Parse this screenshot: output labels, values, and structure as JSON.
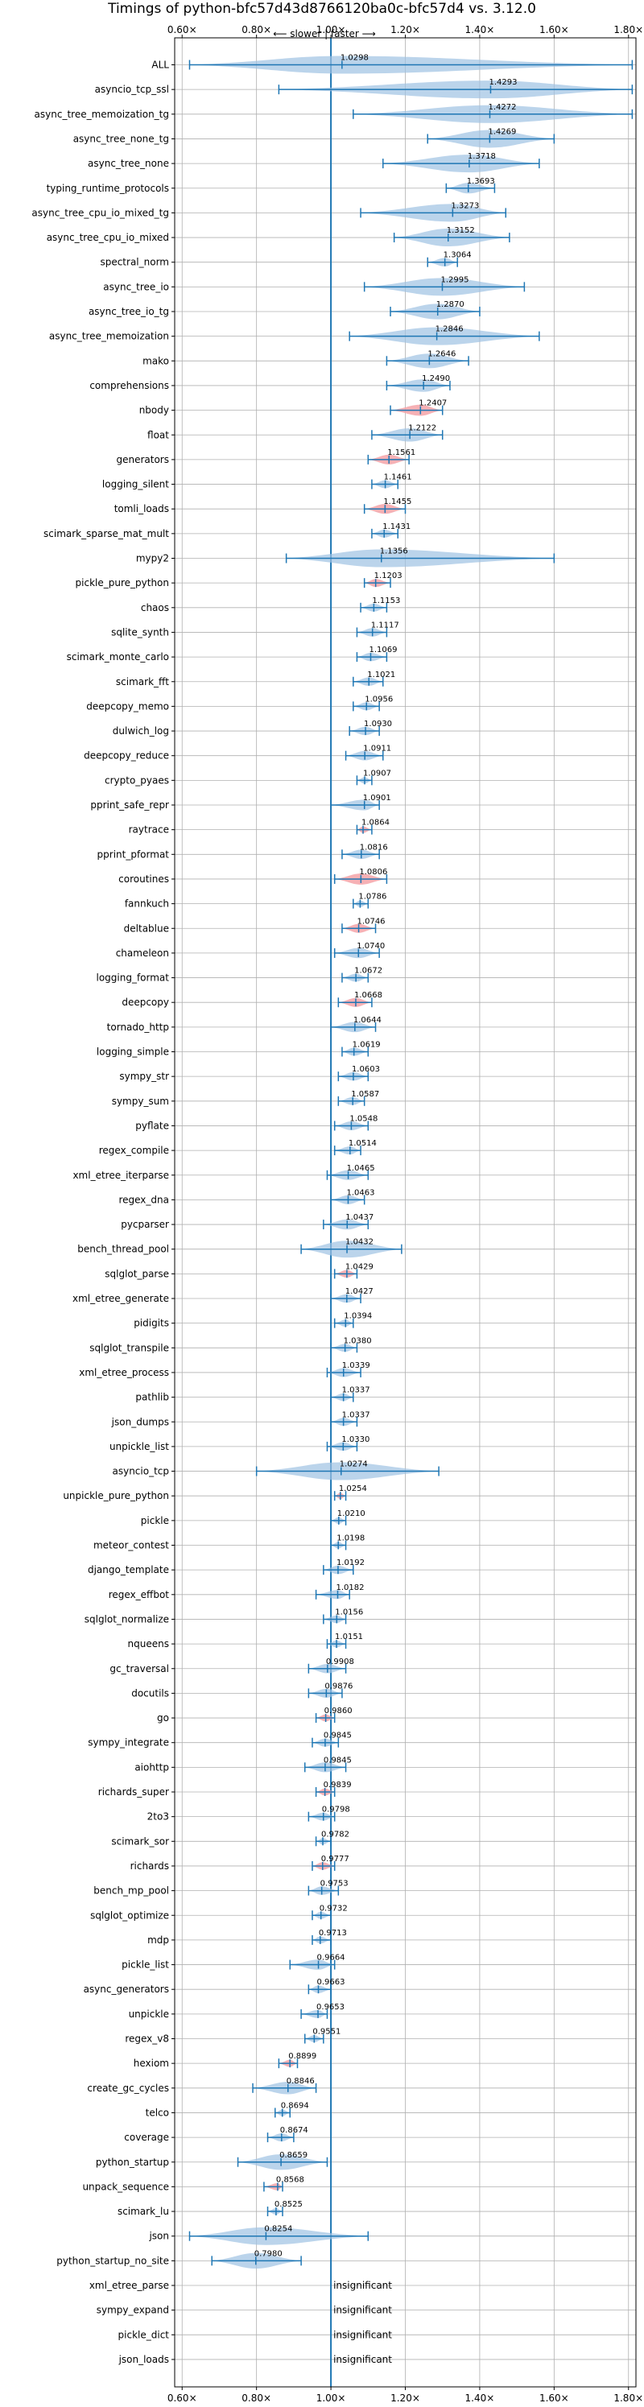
{
  "chart_data": {
    "type": "violin",
    "title": "Timings of python-bfc57d43d8766120ba0c-bfc57d4 vs. 3.12.0",
    "direction_label": "⟵ slower | faster ⟶",
    "xlim": [
      0.58,
      1.82
    ],
    "x_ticks": [
      0.6,
      0.8,
      1.0,
      1.2,
      1.4,
      1.6,
      1.8
    ],
    "x_tick_labels": [
      "0.60×",
      "0.80×",
      "1.00×",
      "1.20×",
      "1.40×",
      "1.60×",
      "1.80×"
    ],
    "reference_line": 1.0,
    "grid": true,
    "insignificant_label": "insignificant",
    "colors": {
      "violin": "#9ec2e2",
      "highlight": "#f4a3a8",
      "line": "#1f77b4",
      "grid": "#b0b0b0"
    },
    "benchmarks": [
      {
        "name": "ALL",
        "value": 1.0298,
        "label": "1.0298",
        "min": 0.62,
        "max": 1.81,
        "highlight": false
      },
      {
        "name": "asyncio_tcp_ssl",
        "value": 1.4293,
        "label": "1.4293",
        "min": 0.86,
        "max": 1.81,
        "highlight": false
      },
      {
        "name": "async_tree_memoization_tg",
        "value": 1.4272,
        "label": "1.4272",
        "min": 1.06,
        "max": 1.81,
        "highlight": false
      },
      {
        "name": "async_tree_none_tg",
        "value": 1.4269,
        "label": "1.4269",
        "min": 1.26,
        "max": 1.6,
        "highlight": false
      },
      {
        "name": "async_tree_none",
        "value": 1.3718,
        "label": "1.3718",
        "min": 1.14,
        "max": 1.56,
        "highlight": false
      },
      {
        "name": "typing_runtime_protocols",
        "value": 1.3693,
        "label": "1.3693",
        "min": 1.31,
        "max": 1.44,
        "highlight": false
      },
      {
        "name": "async_tree_cpu_io_mixed_tg",
        "value": 1.3273,
        "label": "1.3273",
        "min": 1.08,
        "max": 1.47,
        "highlight": false
      },
      {
        "name": "async_tree_cpu_io_mixed",
        "value": 1.3152,
        "label": "1.3152",
        "min": 1.17,
        "max": 1.48,
        "highlight": false
      },
      {
        "name": "spectral_norm",
        "value": 1.3064,
        "label": "1.3064",
        "min": 1.26,
        "max": 1.34,
        "highlight": false
      },
      {
        "name": "async_tree_io",
        "value": 1.2995,
        "label": "1.2995",
        "min": 1.09,
        "max": 1.52,
        "highlight": false
      },
      {
        "name": "async_tree_io_tg",
        "value": 1.287,
        "label": "1.2870",
        "min": 1.16,
        "max": 1.4,
        "highlight": false
      },
      {
        "name": "async_tree_memoization",
        "value": 1.2846,
        "label": "1.2846",
        "min": 1.05,
        "max": 1.56,
        "highlight": false
      },
      {
        "name": "mako",
        "value": 1.2646,
        "label": "1.2646",
        "min": 1.15,
        "max": 1.37,
        "highlight": false
      },
      {
        "name": "comprehensions",
        "value": 1.249,
        "label": "1.2490",
        "min": 1.15,
        "max": 1.32,
        "highlight": false
      },
      {
        "name": "nbody",
        "value": 1.2407,
        "label": "1.2407",
        "min": 1.16,
        "max": 1.3,
        "highlight": true
      },
      {
        "name": "float",
        "value": 1.2122,
        "label": "1.2122",
        "min": 1.11,
        "max": 1.3,
        "highlight": false
      },
      {
        "name": "generators",
        "value": 1.1561,
        "label": "1.1561",
        "min": 1.1,
        "max": 1.21,
        "highlight": true
      },
      {
        "name": "logging_silent",
        "value": 1.1461,
        "label": "1.1461",
        "min": 1.11,
        "max": 1.18,
        "highlight": false
      },
      {
        "name": "tomli_loads",
        "value": 1.1455,
        "label": "1.1455",
        "min": 1.09,
        "max": 1.2,
        "highlight": true
      },
      {
        "name": "scimark_sparse_mat_mult",
        "value": 1.1431,
        "label": "1.1431",
        "min": 1.11,
        "max": 1.18,
        "highlight": false
      },
      {
        "name": "mypy2",
        "value": 1.1356,
        "label": "1.1356",
        "min": 0.88,
        "max": 1.6,
        "highlight": false
      },
      {
        "name": "pickle_pure_python",
        "value": 1.1203,
        "label": "1.1203",
        "min": 1.09,
        "max": 1.16,
        "highlight": true
      },
      {
        "name": "chaos",
        "value": 1.1153,
        "label": "1.1153",
        "min": 1.08,
        "max": 1.15,
        "highlight": false
      },
      {
        "name": "sqlite_synth",
        "value": 1.1117,
        "label": "1.1117",
        "min": 1.07,
        "max": 1.15,
        "highlight": false
      },
      {
        "name": "scimark_monte_carlo",
        "value": 1.1069,
        "label": "1.1069",
        "min": 1.07,
        "max": 1.15,
        "highlight": false
      },
      {
        "name": "scimark_fft",
        "value": 1.1021,
        "label": "1.1021",
        "min": 1.06,
        "max": 1.14,
        "highlight": false
      },
      {
        "name": "deepcopy_memo",
        "value": 1.0956,
        "label": "1.0956",
        "min": 1.06,
        "max": 1.13,
        "highlight": false
      },
      {
        "name": "dulwich_log",
        "value": 1.093,
        "label": "1.0930",
        "min": 1.05,
        "max": 1.13,
        "highlight": false
      },
      {
        "name": "deepcopy_reduce",
        "value": 1.0911,
        "label": "1.0911",
        "min": 1.04,
        "max": 1.14,
        "highlight": false
      },
      {
        "name": "crypto_pyaes",
        "value": 1.0907,
        "label": "1.0907",
        "min": 1.07,
        "max": 1.11,
        "highlight": false
      },
      {
        "name": "pprint_safe_repr",
        "value": 1.0901,
        "label": "1.0901",
        "min": 1.0,
        "max": 1.13,
        "highlight": false
      },
      {
        "name": "raytrace",
        "value": 1.0864,
        "label": "1.0864",
        "min": 1.07,
        "max": 1.11,
        "highlight": true
      },
      {
        "name": "pprint_pformat",
        "value": 1.0816,
        "label": "1.0816",
        "min": 1.03,
        "max": 1.13,
        "highlight": false
      },
      {
        "name": "coroutines",
        "value": 1.0806,
        "label": "1.0806",
        "min": 1.01,
        "max": 1.15,
        "highlight": true
      },
      {
        "name": "fannkuch",
        "value": 1.0786,
        "label": "1.0786",
        "min": 1.06,
        "max": 1.1,
        "highlight": false
      },
      {
        "name": "deltablue",
        "value": 1.0746,
        "label": "1.0746",
        "min": 1.03,
        "max": 1.12,
        "highlight": true
      },
      {
        "name": "chameleon",
        "value": 1.074,
        "label": "1.0740",
        "min": 1.01,
        "max": 1.13,
        "highlight": false
      },
      {
        "name": "logging_format",
        "value": 1.0672,
        "label": "1.0672",
        "min": 1.03,
        "max": 1.1,
        "highlight": false
      },
      {
        "name": "deepcopy",
        "value": 1.0668,
        "label": "1.0668",
        "min": 1.02,
        "max": 1.11,
        "highlight": true
      },
      {
        "name": "tornado_http",
        "value": 1.0644,
        "label": "1.0644",
        "min": 1.0,
        "max": 1.12,
        "highlight": false
      },
      {
        "name": "logging_simple",
        "value": 1.0619,
        "label": "1.0619",
        "min": 1.03,
        "max": 1.1,
        "highlight": false
      },
      {
        "name": "sympy_str",
        "value": 1.0603,
        "label": "1.0603",
        "min": 1.02,
        "max": 1.1,
        "highlight": false
      },
      {
        "name": "sympy_sum",
        "value": 1.0587,
        "label": "1.0587",
        "min": 1.02,
        "max": 1.09,
        "highlight": false
      },
      {
        "name": "pyflate",
        "value": 1.0548,
        "label": "1.0548",
        "min": 1.01,
        "max": 1.1,
        "highlight": false
      },
      {
        "name": "regex_compile",
        "value": 1.0514,
        "label": "1.0514",
        "min": 1.01,
        "max": 1.08,
        "highlight": false
      },
      {
        "name": "xml_etree_iterparse",
        "value": 1.0465,
        "label": "1.0465",
        "min": 0.99,
        "max": 1.1,
        "highlight": false
      },
      {
        "name": "regex_dna",
        "value": 1.0463,
        "label": "1.0463",
        "min": 1.0,
        "max": 1.09,
        "highlight": false
      },
      {
        "name": "pycparser",
        "value": 1.0437,
        "label": "1.0437",
        "min": 0.98,
        "max": 1.1,
        "highlight": false
      },
      {
        "name": "bench_thread_pool",
        "value": 1.0432,
        "label": "1.0432",
        "min": 0.92,
        "max": 1.19,
        "highlight": false
      },
      {
        "name": "sqlglot_parse",
        "value": 1.0429,
        "label": "1.0429",
        "min": 1.01,
        "max": 1.07,
        "highlight": true
      },
      {
        "name": "xml_etree_generate",
        "value": 1.0427,
        "label": "1.0427",
        "min": 1.0,
        "max": 1.08,
        "highlight": false
      },
      {
        "name": "pidigits",
        "value": 1.0394,
        "label": "1.0394",
        "min": 1.01,
        "max": 1.06,
        "highlight": false
      },
      {
        "name": "sqlglot_transpile",
        "value": 1.038,
        "label": "1.0380",
        "min": 1.0,
        "max": 1.07,
        "highlight": false
      },
      {
        "name": "xml_etree_process",
        "value": 1.0339,
        "label": "1.0339",
        "min": 0.99,
        "max": 1.08,
        "highlight": false
      },
      {
        "name": "pathlib",
        "value": 1.0337,
        "label": "1.0337",
        "min": 1.0,
        "max": 1.06,
        "highlight": false
      },
      {
        "name": "json_dumps",
        "value": 1.0337,
        "label": "1.0337",
        "min": 1.0,
        "max": 1.07,
        "highlight": false
      },
      {
        "name": "unpickle_list",
        "value": 1.033,
        "label": "1.0330",
        "min": 0.99,
        "max": 1.07,
        "highlight": false
      },
      {
        "name": "asyncio_tcp",
        "value": 1.0274,
        "label": "1.0274",
        "min": 0.8,
        "max": 1.29,
        "highlight": false
      },
      {
        "name": "unpickle_pure_python",
        "value": 1.0254,
        "label": "1.0254",
        "min": 1.01,
        "max": 1.04,
        "highlight": true
      },
      {
        "name": "pickle",
        "value": 1.021,
        "label": "1.0210",
        "min": 1.0,
        "max": 1.04,
        "highlight": false
      },
      {
        "name": "meteor_contest",
        "value": 1.0198,
        "label": "1.0198",
        "min": 1.0,
        "max": 1.04,
        "highlight": false
      },
      {
        "name": "django_template",
        "value": 1.0192,
        "label": "1.0192",
        "min": 0.98,
        "max": 1.06,
        "highlight": false
      },
      {
        "name": "regex_effbot",
        "value": 1.0182,
        "label": "1.0182",
        "min": 0.96,
        "max": 1.05,
        "highlight": false
      },
      {
        "name": "sqlglot_normalize",
        "value": 1.0156,
        "label": "1.0156",
        "min": 0.98,
        "max": 1.04,
        "highlight": false
      },
      {
        "name": "nqueens",
        "value": 1.0151,
        "label": "1.0151",
        "min": 0.99,
        "max": 1.04,
        "highlight": false
      },
      {
        "name": "gc_traversal",
        "value": 0.9908,
        "label": "0.9908",
        "min": 0.94,
        "max": 1.04,
        "highlight": false
      },
      {
        "name": "docutils",
        "value": 0.9876,
        "label": "0.9876",
        "min": 0.94,
        "max": 1.03,
        "highlight": false
      },
      {
        "name": "go",
        "value": 0.986,
        "label": "0.9860",
        "min": 0.96,
        "max": 1.01,
        "highlight": true
      },
      {
        "name": "sympy_integrate",
        "value": 0.9845,
        "label": "0.9845",
        "min": 0.95,
        "max": 1.02,
        "highlight": false
      },
      {
        "name": "aiohttp",
        "value": 0.9845,
        "label": "0.9845",
        "min": 0.93,
        "max": 1.04,
        "highlight": false
      },
      {
        "name": "richards_super",
        "value": 0.9839,
        "label": "0.9839",
        "min": 0.96,
        "max": 1.01,
        "highlight": true
      },
      {
        "name": "2to3",
        "value": 0.9798,
        "label": "0.9798",
        "min": 0.94,
        "max": 1.01,
        "highlight": false
      },
      {
        "name": "scimark_sor",
        "value": 0.9782,
        "label": "0.9782",
        "min": 0.96,
        "max": 1.0,
        "highlight": false
      },
      {
        "name": "richards",
        "value": 0.9777,
        "label": "0.9777",
        "min": 0.95,
        "max": 1.01,
        "highlight": true
      },
      {
        "name": "bench_mp_pool",
        "value": 0.9753,
        "label": "0.9753",
        "min": 0.94,
        "max": 1.02,
        "highlight": false
      },
      {
        "name": "sqlglot_optimize",
        "value": 0.9732,
        "label": "0.9732",
        "min": 0.95,
        "max": 1.0,
        "highlight": false
      },
      {
        "name": "mdp",
        "value": 0.9713,
        "label": "0.9713",
        "min": 0.95,
        "max": 1.0,
        "highlight": false
      },
      {
        "name": "pickle_list",
        "value": 0.9664,
        "label": "0.9664",
        "min": 0.89,
        "max": 1.01,
        "highlight": false
      },
      {
        "name": "async_generators",
        "value": 0.9663,
        "label": "0.9663",
        "min": 0.94,
        "max": 1.0,
        "highlight": false
      },
      {
        "name": "unpickle",
        "value": 0.9653,
        "label": "0.9653",
        "min": 0.92,
        "max": 0.99,
        "highlight": false
      },
      {
        "name": "regex_v8",
        "value": 0.9551,
        "label": "0.9551",
        "min": 0.93,
        "max": 0.98,
        "highlight": false
      },
      {
        "name": "hexiom",
        "value": 0.8899,
        "label": "0.8899",
        "min": 0.86,
        "max": 0.91,
        "highlight": true
      },
      {
        "name": "create_gc_cycles",
        "value": 0.8846,
        "label": "0.8846",
        "min": 0.79,
        "max": 0.96,
        "highlight": false
      },
      {
        "name": "telco",
        "value": 0.8694,
        "label": "0.8694",
        "min": 0.85,
        "max": 0.89,
        "highlight": false
      },
      {
        "name": "coverage",
        "value": 0.8674,
        "label": "0.8674",
        "min": 0.83,
        "max": 0.9,
        "highlight": false
      },
      {
        "name": "python_startup",
        "value": 0.8659,
        "label": "0.8659",
        "min": 0.75,
        "max": 0.99,
        "highlight": false
      },
      {
        "name": "unpack_sequence",
        "value": 0.8568,
        "label": "0.8568",
        "min": 0.82,
        "max": 0.87,
        "highlight": true
      },
      {
        "name": "scimark_lu",
        "value": 0.8525,
        "label": "0.8525",
        "min": 0.83,
        "max": 0.87,
        "highlight": false
      },
      {
        "name": "json",
        "value": 0.8254,
        "label": "0.8254",
        "min": 0.62,
        "max": 1.1,
        "highlight": false
      },
      {
        "name": "python_startup_no_site",
        "value": 0.798,
        "label": "0.7980",
        "min": 0.68,
        "max": 0.92,
        "highlight": false
      },
      {
        "name": "xml_etree_parse",
        "value": null,
        "label": "insignificant",
        "min": null,
        "max": null,
        "highlight": false
      },
      {
        "name": "sympy_expand",
        "value": null,
        "label": "insignificant",
        "min": null,
        "max": null,
        "highlight": false
      },
      {
        "name": "pickle_dict",
        "value": null,
        "label": "insignificant",
        "min": null,
        "max": null,
        "highlight": false
      },
      {
        "name": "json_loads",
        "value": null,
        "label": "insignificant",
        "min": null,
        "max": null,
        "highlight": false
      }
    ]
  }
}
